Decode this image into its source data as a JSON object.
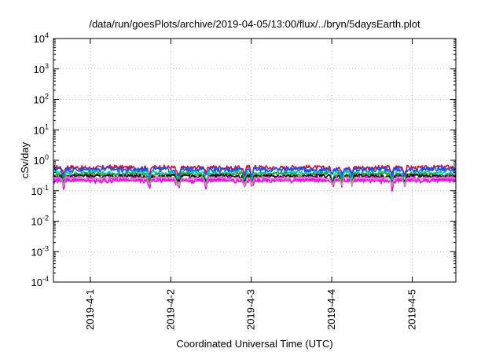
{
  "chart_data": {
    "type": "line",
    "title": "/data/run/goesPlots/archive/2019-04-05/13:00/flux/../bryn/5daysEarth.plot",
    "xlabel": "Coordinated Universal Time (UTC)",
    "ylabel": "cSv/day",
    "y_scale": "log",
    "ylim": [
      0.0001,
      10000
    ],
    "xlim": [
      "2019-03-31T13:00",
      "2019-04-05T13:00"
    ],
    "grid": true,
    "legend": "none",
    "y_ticks": [
      {
        "value": 0.0001,
        "base": "10",
        "exp": "-4"
      },
      {
        "value": 0.001,
        "base": "10",
        "exp": "-3"
      },
      {
        "value": 0.01,
        "base": "10",
        "exp": "-2"
      },
      {
        "value": 0.1,
        "base": "10",
        "exp": "-1"
      },
      {
        "value": 1,
        "base": "10",
        "exp": "0"
      },
      {
        "value": 10,
        "base": "10",
        "exp": "1"
      },
      {
        "value": 100,
        "base": "10",
        "exp": "2"
      },
      {
        "value": 1000,
        "base": "10",
        "exp": "3"
      },
      {
        "value": 10000,
        "base": "10",
        "exp": "4"
      }
    ],
    "x_ticks": [
      {
        "value": "2019-04-01T00:00",
        "label": "2019-4-1"
      },
      {
        "value": "2019-04-02T00:00",
        "label": "2019-4-2"
      },
      {
        "value": "2019-04-03T00:00",
        "label": "2019-4-3"
      },
      {
        "value": "2019-04-04T00:00",
        "label": "2019-4-4"
      },
      {
        "value": "2019-04-05T00:00",
        "label": "2019-4-5"
      }
    ],
    "dips": [
      "2019-03-31T16:00",
      "2019-04-01T17:40",
      "2019-04-02T02:00",
      "2019-04-02T02:30",
      "2019-04-02T10:30",
      "2019-04-02T22:00",
      "2019-04-03T00:10",
      "2019-04-04T00:10",
      "2019-04-04T03:00",
      "2019-04-04T06:00",
      "2019-04-04T18:00",
      "2019-04-04T21:40"
    ],
    "series": [
      {
        "color": "#c0143c",
        "base": 0.58,
        "spread": 0.1
      },
      {
        "color": "#1e50e6",
        "base": 0.5,
        "spread": 0.1
      },
      {
        "color": "#00c8c8",
        "base": 0.38,
        "spread": 0.06
      },
      {
        "color": "#2aa02a",
        "base": 0.34,
        "spread": 0.05
      },
      {
        "color": "#111111",
        "base": 0.3,
        "spread": 0.04
      },
      {
        "color": "#ff00ff",
        "base": 0.24,
        "spread": 0.06,
        "fill_to": 0.2
      },
      {
        "color": "#b4a0a0",
        "base": 0.26,
        "spread": 0.02
      }
    ]
  }
}
